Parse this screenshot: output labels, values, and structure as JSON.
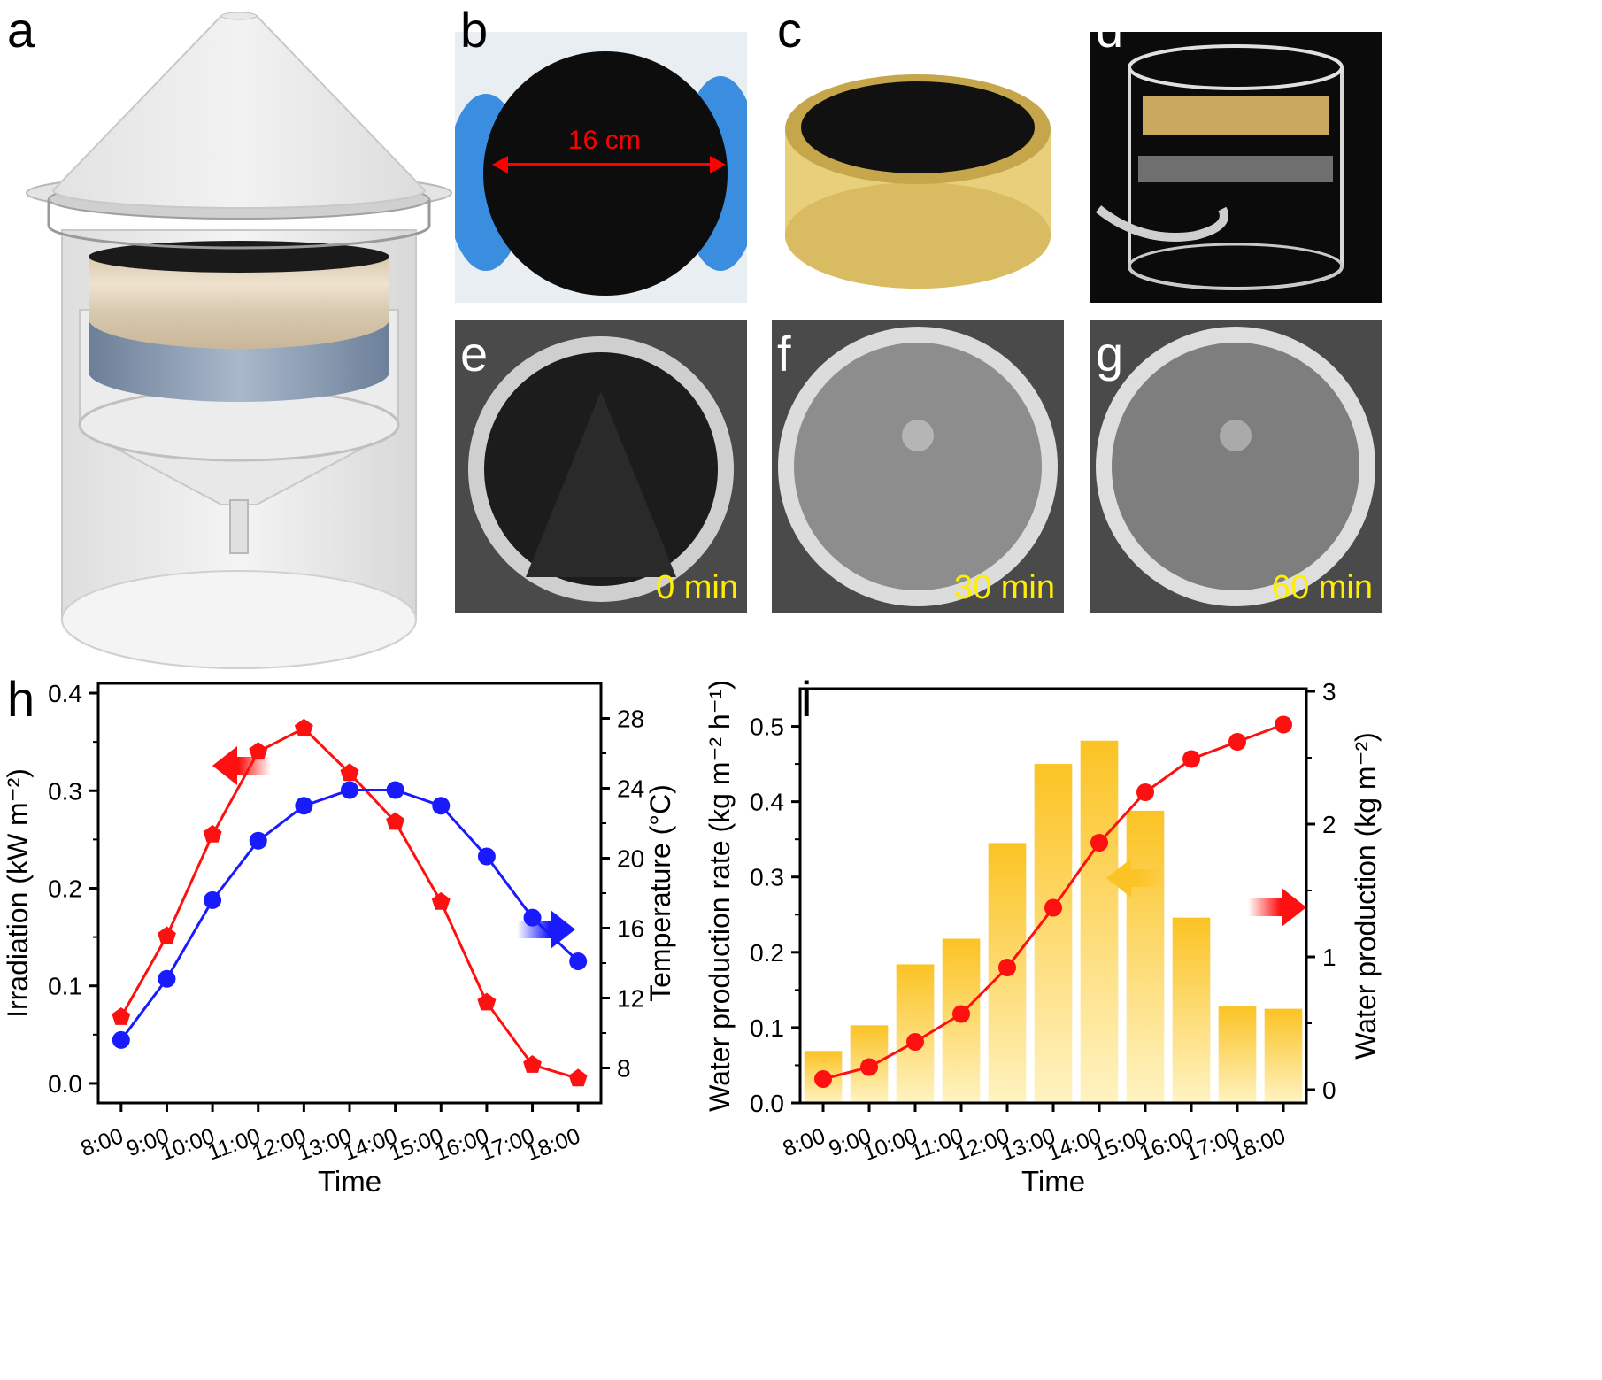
{
  "panels": {
    "a": "a",
    "b": "b",
    "c": "c",
    "d": "d",
    "e": "e",
    "f": "f",
    "g": "g",
    "h": "h",
    "i": "i"
  },
  "photo_b": {
    "dimension_label": "16 cm"
  },
  "photo_e": {
    "time_label": "0 min"
  },
  "photo_f": {
    "time_label": "30 min"
  },
  "photo_g": {
    "time_label": "60 min"
  },
  "colors": {
    "irradiation": "#ff1010",
    "temperature": "#1a1aff",
    "rate_bar": "#fbc324",
    "production": "#ff1010"
  },
  "chart_data": [
    {
      "panel": "h",
      "type": "line",
      "xlabel": "Time",
      "ylabel": "Irradiation (kW m⁻²)",
      "y2label": "Temperature (°C)",
      "categories": [
        "8:00",
        "9:00",
        "10:00",
        "11:00",
        "12:00",
        "13:00",
        "14:00",
        "15:00",
        "16:00",
        "17:00",
        "18:00"
      ],
      "ylim": [
        -0.02,
        0.41
      ],
      "yticks": [
        0.0,
        0.1,
        0.2,
        0.3,
        0.4
      ],
      "ytick_labels": [
        "0.0",
        "0.1",
        "0.2",
        "0.3",
        "0.4"
      ],
      "y2lim": [
        6,
        30
      ],
      "y2ticks": [
        8,
        12,
        16,
        20,
        24,
        28
      ],
      "y2tick_labels": [
        "8",
        "12",
        "16",
        "20",
        "24",
        "28"
      ],
      "series": [
        {
          "name": "Irradiation",
          "axis": "left",
          "marker": "pentagon",
          "values": [
            0.068,
            0.151,
            0.255,
            0.34,
            0.364,
            0.318,
            0.268,
            0.186,
            0.083,
            0.019,
            0.005
          ]
        },
        {
          "name": "Temperature",
          "axis": "right",
          "marker": "circle",
          "values": [
            9.6,
            13.1,
            17.6,
            21.0,
            23.0,
            23.9,
            23.9,
            23.0,
            20.1,
            16.6,
            14.1
          ]
        }
      ],
      "annotations": [
        "left-arrow (red) → Irradiation axis",
        "right-arrow (blue) → Temperature axis"
      ]
    },
    {
      "panel": "i",
      "type": "bar",
      "xlabel": "Time",
      "ylabel": "Water production rate (kg m⁻² h⁻¹)",
      "y2label": "Water production (kg m⁻²)",
      "categories": [
        "8:00",
        "9:00",
        "10:00",
        "11:00",
        "12:00",
        "13:00",
        "14:00",
        "15:00",
        "16:00",
        "17:00",
        "18:00"
      ],
      "ylim": [
        0,
        0.55
      ],
      "yticks": [
        0.0,
        0.1,
        0.2,
        0.3,
        0.4,
        0.5
      ],
      "ytick_labels": [
        "0.0",
        "0.1",
        "0.2",
        "0.3",
        "0.4",
        "0.5"
      ],
      "y2lim": [
        -0.1,
        3.02
      ],
      "y2ticks": [
        0,
        1,
        2,
        3
      ],
      "y2tick_labels": [
        "0",
        "1",
        "2",
        "3"
      ],
      "series": [
        {
          "name": "Water production rate",
          "axis": "left",
          "kind": "bar",
          "values": [
            0.069,
            0.103,
            0.184,
            0.218,
            0.345,
            0.45,
            0.481,
            0.388,
            0.246,
            0.128,
            0.125
          ]
        },
        {
          "name": "Water production",
          "axis": "right",
          "kind": "line",
          "marker": "circle",
          "values": [
            0.08,
            0.17,
            0.36,
            0.57,
            0.92,
            1.37,
            1.86,
            2.24,
            2.49,
            2.62,
            2.75
          ]
        }
      ],
      "annotations": [
        "left-arrow (orange) → rate axis",
        "right-arrow (red) → production axis"
      ]
    }
  ]
}
